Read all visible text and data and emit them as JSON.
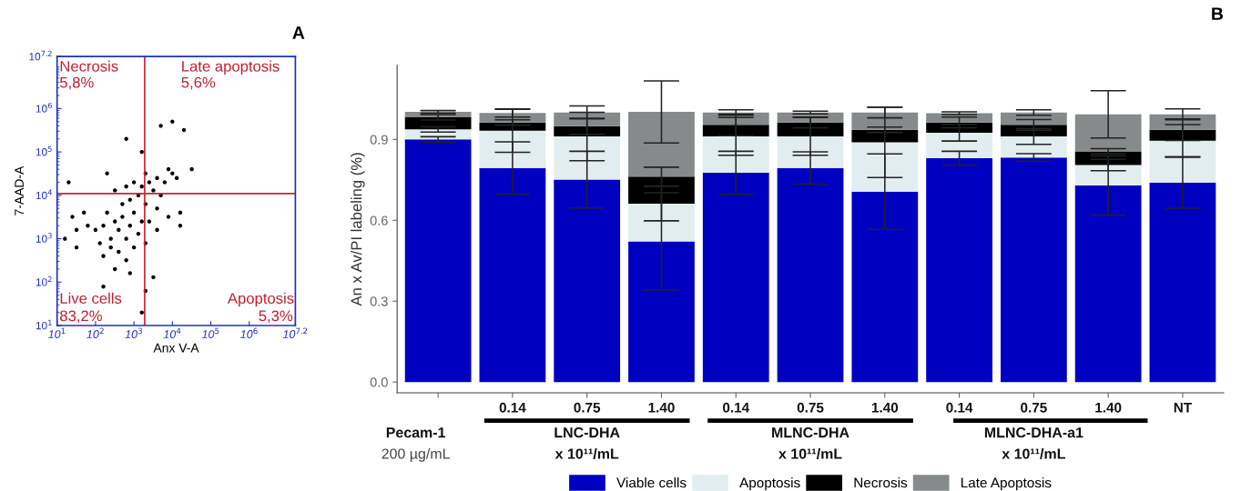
{
  "chart_data": [
    {
      "type": "scatter",
      "title": "A",
      "xlabel": "Anx V-A",
      "ylabel": "7-AAD-A",
      "log": "xy",
      "marker": "circle",
      "grid": false,
      "color": "#000000",
      "xlim": [
        10,
        15848932
      ],
      "ylim": [
        10,
        15848932
      ],
      "xticks": [
        {
          "value": 10,
          "label": "10$^{1}$"
        },
        {
          "value": 100,
          "label": "10$^{2}$"
        },
        {
          "value": 1000,
          "label": "10$^{3}$"
        },
        {
          "value": 10000,
          "label": "10$^{4}$"
        },
        {
          "value": 100000,
          "label": "10$^{5}$"
        },
        {
          "value": 1000000,
          "label": "10$^{6}$"
        },
        {
          "value": 15848932,
          "label": "10$^{7.2}$"
        }
      ],
      "yticks": [
        {
          "value": 10,
          "label": "10$^{1}$"
        },
        {
          "value": 100,
          "label": "10$^{2}$"
        },
        {
          "value": 1000,
          "label": "10$^{3}$"
        },
        {
          "value": 10000,
          "label": "10$^{4}$"
        },
        {
          "value": 100000,
          "label": "10$^{5}$"
        },
        {
          "value": 1000000,
          "label": "10$^{6}$"
        },
        {
          "value": 15848932,
          "label": "10$^{7.2}$"
        }
      ],
      "ref_lines": [
        {
          "axis": "x",
          "value": 1900,
          "color": "#d02030"
        },
        {
          "axis": "y",
          "value": 11000,
          "color": "#d02030"
        }
      ],
      "annotations": [
        "Necrosis",
        "5,8%",
        "Late apoptosis",
        "5,6%",
        "Live cells",
        "83,2%",
        "Apoptosis",
        "5,3%"
      ],
      "x": [
        160,
        250,
        320,
        400,
        500,
        630,
        790,
        1000,
        1300,
        200,
        100,
        63,
        32,
        16,
        400,
        630,
        1000,
        1600,
        2000,
        250,
        130,
        500,
        790,
        1300,
        50,
        25,
        320,
        790,
        2000,
        160,
        1600,
        2500,
        4000,
        6300,
        10000,
        3200,
        5000,
        2000,
        1000,
        630,
        320,
        7900,
        13000,
        4000,
        7900,
        16000,
        2500,
        4000,
        630,
        5000,
        10000,
        20000,
        32000,
        2000,
        160,
        32,
        20,
        3200,
        16000,
        1600,
        200,
        1600
      ],
      "values": [
        2000,
        1000,
        2500,
        1600,
        3200,
        1000,
        2000,
        4000,
        1300,
        4000,
        1600,
        2000,
        1600,
        1000,
        500,
        320,
        630,
        2500,
        6300,
        630,
        790,
        6300,
        7900,
        10000,
        4000,
        3200,
        200,
        160,
        790,
        400,
        16000,
        20000,
        25000,
        20000,
        32000,
        13000,
        10000,
        32000,
        20000,
        16000,
        13000,
        40000,
        25000,
        5000,
        3200,
        4000,
        2500,
        1600,
        200000,
        400000,
        500000,
        320000,
        40000,
        63,
        79,
        630,
        20000,
        130,
        2000,
        20,
        32000,
        100000
      ]
    },
    {
      "type": "bar",
      "stacked": true,
      "ylabel": "An x Av/PI labeling (%)",
      "title": "B",
      "grid": false,
      "legend": "bottom",
      "ylim": [
        -0.04,
        1.175
      ],
      "yticks": [
        {
          "value": 0.0,
          "label": "0.0"
        },
        0.3,
        0.6,
        0.9
      ],
      "categories": [
        null,
        "0.14",
        "0.75",
        "1.40",
        "0.14",
        "0.75",
        "1.40",
        "0.14",
        "0.75",
        "1.40",
        "NT"
      ],
      "annotations": [
        "Pecam-1",
        "200 µg/mL",
        "LNC-DHA",
        "x 10¹¹/mL",
        "MLNC-DHA",
        "x 10¹¹/mL",
        "MLNC-DHA-a1",
        "x 10¹¹/mL"
      ],
      "series": [
        {
          "name": "Viable cells",
          "color": "#0000c0",
          "values": [
            0.9,
            0.794,
            0.751,
            0.522,
            0.776,
            0.794,
            0.706,
            0.83,
            0.833,
            0.729,
            0.74
          ],
          "errors": [
            0.01,
            0.097,
            0.105,
            0.18,
            0.08,
            0.06,
            0.14,
            0.026,
            0.014,
            0.11,
            0.095
          ]
        },
        {
          "name": "Apoptosis",
          "color": "#e2edf0",
          "values": [
            0.037,
            0.138,
            0.16,
            0.14,
            0.135,
            0.117,
            0.183,
            0.095,
            0.078,
            0.076,
            0.155
          ],
          "errors": [
            0.01,
            0.08,
            0.09,
            0.064,
            0.07,
            0.07,
            0.13,
            0.031,
            0.029,
            0.021,
            0.06
          ]
        },
        {
          "name": "Necrosis",
          "color": "#000000",
          "values": [
            0.045,
            0.031,
            0.038,
            0.1,
            0.043,
            0.052,
            0.047,
            0.038,
            0.043,
            0.051,
            0.041
          ],
          "errors": [
            0.01,
            0.01,
            0.03,
            0.035,
            0.04,
            0.02,
            0.01,
            0.02,
            0.02,
            0.01,
            0.04
          ]
        },
        {
          "name": "Late Apoptosis",
          "color": "#868a8a",
          "values": [
            0.02,
            0.035,
            0.051,
            0.24,
            0.046,
            0.037,
            0.064,
            0.034,
            0.046,
            0.137,
            0.057
          ],
          "errors": [
            0.005,
            0.015,
            0.024,
            0.115,
            0.01,
            0.005,
            0.02,
            0.005,
            0.01,
            0.088,
            0.02
          ]
        }
      ]
    }
  ]
}
